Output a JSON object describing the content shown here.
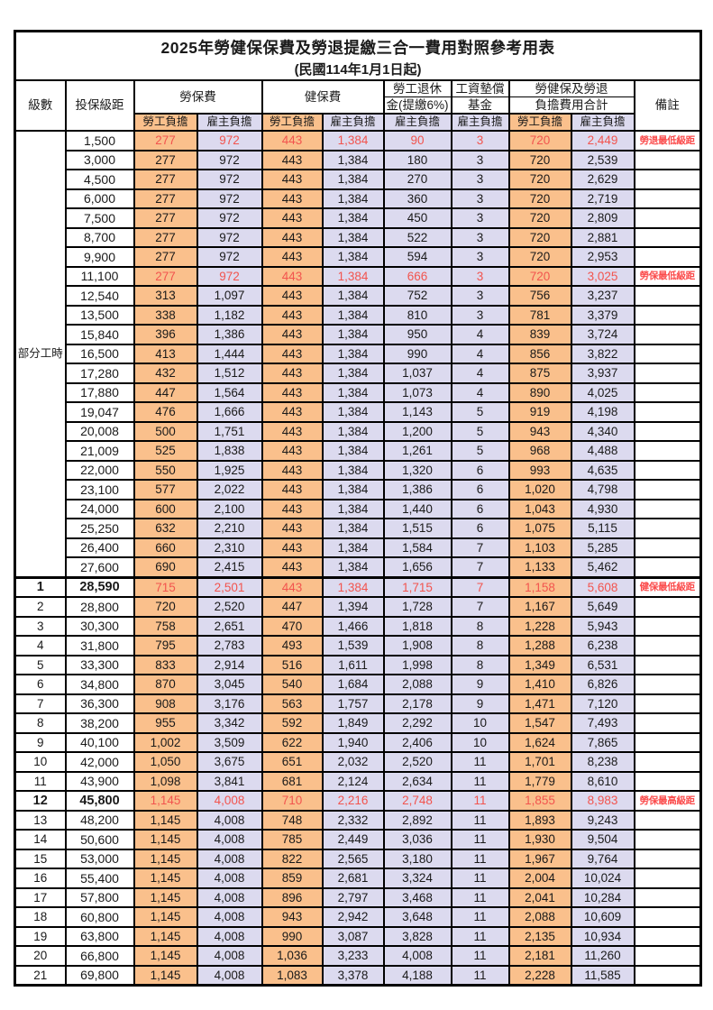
{
  "page": {
    "title_line1": "2025年勞健保保費及勞退提繳三合一費用對照參考用表",
    "title_line2": "(民國114年1月1日起)"
  },
  "header": {
    "level": "級數",
    "bracket": "投保級距",
    "labor_insurance": "勞保費",
    "health_insurance": "健保費",
    "pension_line1": "勞工退休",
    "pension_line2": "金(提繳6%)",
    "wage_fund_line1": "工資墊償",
    "wage_fund_line2": "基金",
    "total_line1": "勞健保及勞退",
    "total_line2": "負擔費用合計",
    "remark": "備註",
    "employee": "勞工負擔",
    "employer": "雇主負擔"
  },
  "part_time": {
    "label": "部分工時",
    "rowspan": 23
  },
  "row_fields": [
    "level",
    "bracket",
    "labor_emp",
    "labor_er",
    "health_emp",
    "health_er",
    "pension_er",
    "fund_er",
    "total_emp",
    "total_er",
    "remark",
    "is_red",
    "is_bold",
    "has_separator"
  ],
  "rows": [
    [
      "",
      "1,500",
      "277",
      "972",
      "443",
      "1,384",
      "90",
      "3",
      "720",
      "2,449",
      "勞退最低級距",
      1,
      0,
      0
    ],
    [
      "",
      "3,000",
      "277",
      "972",
      "443",
      "1,384",
      "180",
      "3",
      "720",
      "2,539",
      "",
      0,
      0,
      0
    ],
    [
      "",
      "4,500",
      "277",
      "972",
      "443",
      "1,384",
      "270",
      "3",
      "720",
      "2,629",
      "",
      0,
      0,
      0
    ],
    [
      "",
      "6,000",
      "277",
      "972",
      "443",
      "1,384",
      "360",
      "3",
      "720",
      "2,719",
      "",
      0,
      0,
      0
    ],
    [
      "",
      "7,500",
      "277",
      "972",
      "443",
      "1,384",
      "450",
      "3",
      "720",
      "2,809",
      "",
      0,
      0,
      0
    ],
    [
      "",
      "8,700",
      "277",
      "972",
      "443",
      "1,384",
      "522",
      "3",
      "720",
      "2,881",
      "",
      0,
      0,
      0
    ],
    [
      "",
      "9,900",
      "277",
      "972",
      "443",
      "1,384",
      "594",
      "3",
      "720",
      "2,953",
      "",
      0,
      0,
      0
    ],
    [
      "",
      "11,100",
      "277",
      "972",
      "443",
      "1,384",
      "666",
      "3",
      "720",
      "3,025",
      "勞保最低級距",
      1,
      0,
      0
    ],
    [
      "",
      "12,540",
      "313",
      "1,097",
      "443",
      "1,384",
      "752",
      "3",
      "756",
      "3,237",
      "",
      0,
      0,
      0
    ],
    [
      "",
      "13,500",
      "338",
      "1,182",
      "443",
      "1,384",
      "810",
      "3",
      "781",
      "3,379",
      "",
      0,
      0,
      0
    ],
    [
      "",
      "15,840",
      "396",
      "1,386",
      "443",
      "1,384",
      "950",
      "4",
      "839",
      "3,724",
      "",
      0,
      0,
      0
    ],
    [
      "",
      "16,500",
      "413",
      "1,444",
      "443",
      "1,384",
      "990",
      "4",
      "856",
      "3,822",
      "",
      0,
      0,
      0
    ],
    [
      "",
      "17,280",
      "432",
      "1,512",
      "443",
      "1,384",
      "1,037",
      "4",
      "875",
      "3,937",
      "",
      0,
      0,
      0
    ],
    [
      "",
      "17,880",
      "447",
      "1,564",
      "443",
      "1,384",
      "1,073",
      "4",
      "890",
      "4,025",
      "",
      0,
      0,
      0
    ],
    [
      "",
      "19,047",
      "476",
      "1,666",
      "443",
      "1,384",
      "1,143",
      "5",
      "919",
      "4,198",
      "",
      0,
      0,
      0
    ],
    [
      "",
      "20,008",
      "500",
      "1,751",
      "443",
      "1,384",
      "1,200",
      "5",
      "943",
      "4,340",
      "",
      0,
      0,
      0
    ],
    [
      "",
      "21,009",
      "525",
      "1,838",
      "443",
      "1,384",
      "1,261",
      "5",
      "968",
      "4,488",
      "",
      0,
      0,
      0
    ],
    [
      "",
      "22,000",
      "550",
      "1,925",
      "443",
      "1,384",
      "1,320",
      "6",
      "993",
      "4,635",
      "",
      0,
      0,
      0
    ],
    [
      "",
      "23,100",
      "577",
      "2,022",
      "443",
      "1,384",
      "1,386",
      "6",
      "1,020",
      "4,798",
      "",
      0,
      0,
      0
    ],
    [
      "",
      "24,000",
      "600",
      "2,100",
      "443",
      "1,384",
      "1,440",
      "6",
      "1,043",
      "4,930",
      "",
      0,
      0,
      0
    ],
    [
      "",
      "25,250",
      "632",
      "2,210",
      "443",
      "1,384",
      "1,515",
      "6",
      "1,075",
      "5,115",
      "",
      0,
      0,
      0
    ],
    [
      "",
      "26,400",
      "660",
      "2,310",
      "443",
      "1,384",
      "1,584",
      "7",
      "1,103",
      "5,285",
      "",
      0,
      0,
      0
    ],
    [
      "",
      "27,600",
      "690",
      "2,415",
      "443",
      "1,384",
      "1,656",
      "7",
      "1,133",
      "5,462",
      "",
      0,
      0,
      0
    ],
    [
      "1",
      "28,590",
      "715",
      "2,501",
      "443",
      "1,384",
      "1,715",
      "7",
      "1,158",
      "5,608",
      "健保最低級距",
      1,
      1,
      1
    ],
    [
      "2",
      "28,800",
      "720",
      "2,520",
      "447",
      "1,394",
      "1,728",
      "7",
      "1,167",
      "5,649",
      "",
      0,
      0,
      0
    ],
    [
      "3",
      "30,300",
      "758",
      "2,651",
      "470",
      "1,466",
      "1,818",
      "8",
      "1,228",
      "5,943",
      "",
      0,
      0,
      0
    ],
    [
      "4",
      "31,800",
      "795",
      "2,783",
      "493",
      "1,539",
      "1,908",
      "8",
      "1,288",
      "6,238",
      "",
      0,
      0,
      0
    ],
    [
      "5",
      "33,300",
      "833",
      "2,914",
      "516",
      "1,611",
      "1,998",
      "8",
      "1,349",
      "6,531",
      "",
      0,
      0,
      0
    ],
    [
      "6",
      "34,800",
      "870",
      "3,045",
      "540",
      "1,684",
      "2,088",
      "9",
      "1,410",
      "6,826",
      "",
      0,
      0,
      0
    ],
    [
      "7",
      "36,300",
      "908",
      "3,176",
      "563",
      "1,757",
      "2,178",
      "9",
      "1,471",
      "7,120",
      "",
      0,
      0,
      0
    ],
    [
      "8",
      "38,200",
      "955",
      "3,342",
      "592",
      "1,849",
      "2,292",
      "10",
      "1,547",
      "7,493",
      "",
      0,
      0,
      0
    ],
    [
      "9",
      "40,100",
      "1,002",
      "3,509",
      "622",
      "1,940",
      "2,406",
      "10",
      "1,624",
      "7,865",
      "",
      0,
      0,
      0
    ],
    [
      "10",
      "42,000",
      "1,050",
      "3,675",
      "651",
      "2,032",
      "2,520",
      "11",
      "1,701",
      "8,238",
      "",
      0,
      0,
      0
    ],
    [
      "11",
      "43,900",
      "1,098",
      "3,841",
      "681",
      "2,124",
      "2,634",
      "11",
      "1,779",
      "8,610",
      "",
      0,
      0,
      0
    ],
    [
      "12",
      "45,800",
      "1,145",
      "4,008",
      "710",
      "2,216",
      "2,748",
      "11",
      "1,855",
      "8,983",
      "勞保最高級距",
      1,
      1,
      0
    ],
    [
      "13",
      "48,200",
      "1,145",
      "4,008",
      "748",
      "2,332",
      "2,892",
      "11",
      "1,893",
      "9,243",
      "",
      0,
      0,
      0
    ],
    [
      "14",
      "50,600",
      "1,145",
      "4,008",
      "785",
      "2,449",
      "3,036",
      "11",
      "1,930",
      "9,504",
      "",
      0,
      0,
      0
    ],
    [
      "15",
      "53,000",
      "1,145",
      "4,008",
      "822",
      "2,565",
      "3,180",
      "11",
      "1,967",
      "9,764",
      "",
      0,
      0,
      0
    ],
    [
      "16",
      "55,400",
      "1,145",
      "4,008",
      "859",
      "2,681",
      "3,324",
      "11",
      "2,004",
      "10,024",
      "",
      0,
      0,
      0
    ],
    [
      "17",
      "57,800",
      "1,145",
      "4,008",
      "896",
      "2,797",
      "3,468",
      "11",
      "2,041",
      "10,284",
      "",
      0,
      0,
      0
    ],
    [
      "18",
      "60,800",
      "1,145",
      "4,008",
      "943",
      "2,942",
      "3,648",
      "11",
      "2,088",
      "10,609",
      "",
      0,
      0,
      0
    ],
    [
      "19",
      "63,800",
      "1,145",
      "4,008",
      "990",
      "3,087",
      "3,828",
      "11",
      "2,135",
      "10,934",
      "",
      0,
      0,
      0
    ],
    [
      "20",
      "66,800",
      "1,145",
      "4,008",
      "1,036",
      "3,233",
      "4,008",
      "11",
      "2,181",
      "11,260",
      "",
      0,
      0,
      0
    ],
    [
      "21",
      "69,800",
      "1,145",
      "4,008",
      "1,083",
      "3,378",
      "4,188",
      "11",
      "2,228",
      "11,585",
      "",
      0,
      0,
      0
    ]
  ],
  "colors": {
    "employee_fill": "#FAC08C",
    "employer_fill": "#DCDAEF",
    "highlight_red": "#F2544E",
    "remark_red": "#FB4B4B",
    "border": "#000000",
    "text": "#1A1A1A"
  }
}
